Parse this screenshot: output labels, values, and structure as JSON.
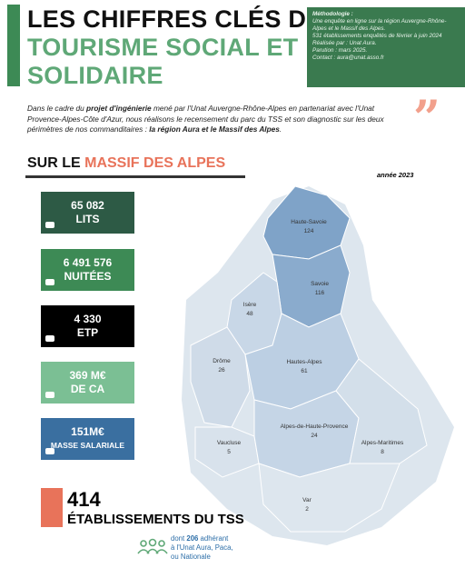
{
  "header": {
    "title_lines": [
      "LES CHIFFRES CLÉS DU",
      "TOURISME SOCIAL ET",
      "SOLIDAIRE"
    ],
    "methodology": [
      "Méthodologie :",
      "Une enquête en ligne sur la région Auvergne-Rhône-Alpes et le Massif des Alpes.",
      "531 établissements enquêtés de février à juin 2024",
      "Réalisée par : Unat Aura.",
      "Parution : mars 2025.",
      "Contact : aura@unat.asso.fr"
    ]
  },
  "intro": [
    "Dans le cadre du",
    "projet d'ingénierie",
    "mené par l'Unat Auvergne-Rhône-Alpes en partenariat avec l'Unat Provence-Alpes-Côte d'Azur, nous réalisons le recensement du parc du TSS et son diagnostic sur les deux périmètres de nos commanditaires :",
    "la région Aura et le Massif des Alpes",
    "."
  ],
  "section": {
    "title_prefix": "SUR LE",
    "title_highlight": "MASSIF DES ALPES",
    "year": "année 2023"
  },
  "stats": [
    {
      "value": "65 082",
      "label": "LITS"
    },
    {
      "value": "6 491 576",
      "label": "NUITÉES"
    },
    {
      "value": "4 330",
      "label": "ETP"
    },
    {
      "value": "369 M€",
      "label": "DE CA"
    },
    {
      "value": "151M€",
      "label": "MASSE SALARIALE"
    }
  ],
  "map": {
    "regions": [
      {
        "name": "Haute-Savoie",
        "count": 124
      },
      {
        "name": "Savoie",
        "count": 116
      },
      {
        "name": "Isère",
        "count": 48
      },
      {
        "name": "Drôme",
        "count": 26
      },
      {
        "name": "Hautes-Alpes",
        "count": 61
      },
      {
        "name": "Alpes-de-Haute-Provence",
        "count": 24
      },
      {
        "name": "Vaucluse",
        "count": 5
      },
      {
        "name": "Alpes-Maritimes",
        "count": 8
      },
      {
        "name": "Var",
        "count": 2
      }
    ]
  },
  "total": {
    "value": "414",
    "label": "ÉTABLISSEMENTS DU TSS",
    "note": [
      "dont",
      "206",
      "adhérant",
      "à l'Unat Aura, Paca,",
      "ou Nationale"
    ]
  }
}
